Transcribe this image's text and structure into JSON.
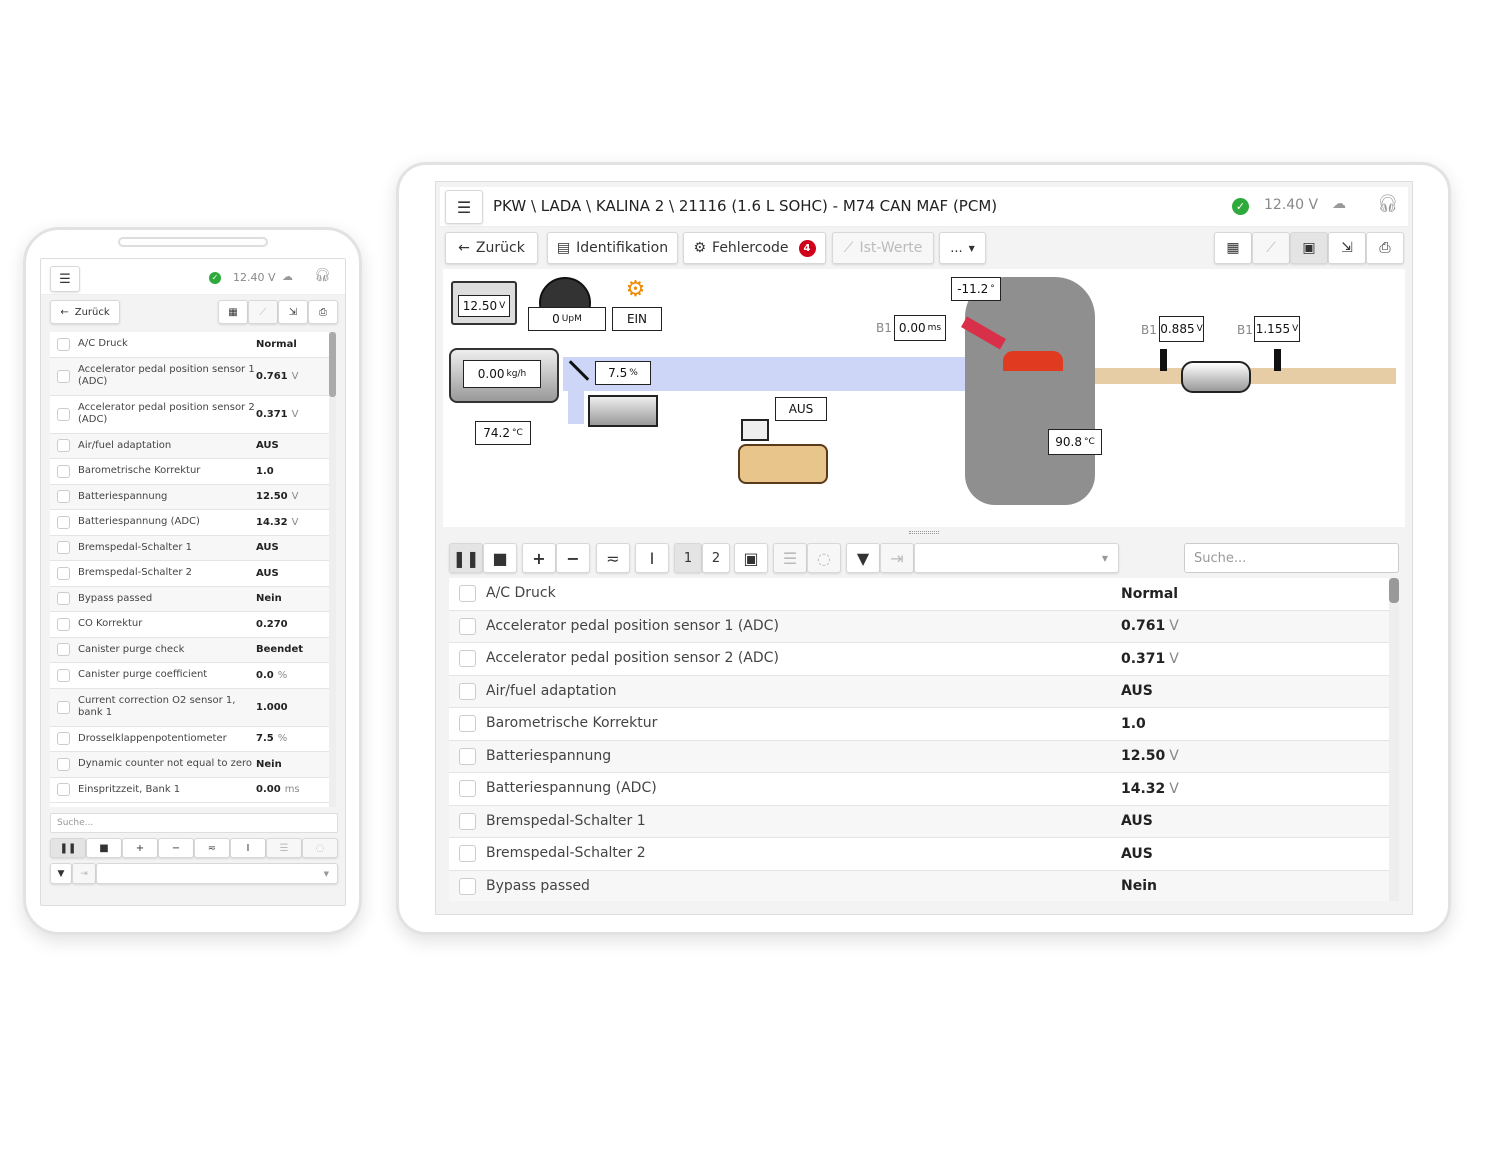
{
  "header": {
    "title": "PKW \\ LADA \\ KALINA 2 \\ 21116 (1.6 L SOHC) - M74 CAN MAF (PCM)",
    "voltage": "12.40 V",
    "status_color": "#2eaa3c"
  },
  "toolbar": {
    "back": "Zurück",
    "identification": "Identifikation",
    "fault_codes": "Fehlercode",
    "fault_count": "4",
    "live_values": "Ist-Werte",
    "more": "...",
    "badge_color": "#d0021b"
  },
  "diagram": {
    "battery": {
      "value": "12.50",
      "unit": "V"
    },
    "rpm": {
      "value": "0",
      "unit": "UpM"
    },
    "engine_lamp": "EIN",
    "maf": {
      "value": "0.00",
      "unit": "kg/h"
    },
    "throttle": {
      "value": "7.5",
      "unit": "%"
    },
    "intake_temp": {
      "value": "74.2",
      "unit": "°C"
    },
    "purge_valve": "AUS",
    "ignition": {
      "value": "-11.2",
      "unit": "°"
    },
    "injection": {
      "bank": "B1",
      "value": "0.00",
      "unit": "ms"
    },
    "coolant": {
      "value": "90.8",
      "unit": "°C"
    },
    "o2_1": {
      "bank": "B1",
      "value": "0.885",
      "unit": "V"
    },
    "o2_2": {
      "bank": "B1",
      "value": "1.155",
      "unit": "V"
    }
  },
  "list_toolbar": {
    "page1": "1",
    "page2": "2",
    "search_placeholder": "Suche..."
  },
  "rows": [
    {
      "name": "A/C Druck",
      "value": "Normal",
      "unit": ""
    },
    {
      "name": "Accelerator pedal position sensor 1 (ADC)",
      "value": "0.761",
      "unit": "V"
    },
    {
      "name": "Accelerator pedal position sensor 2 (ADC)",
      "value": "0.371",
      "unit": "V"
    },
    {
      "name": "Air/fuel adaptation",
      "value": "AUS",
      "unit": ""
    },
    {
      "name": "Barometrische Korrektur",
      "value": "1.0",
      "unit": ""
    },
    {
      "name": "Batteriespannung",
      "value": "12.50",
      "unit": "V"
    },
    {
      "name": "Batteriespannung (ADC)",
      "value": "14.32",
      "unit": "V"
    },
    {
      "name": "Bremspedal-Schalter 1",
      "value": "AUS",
      "unit": ""
    },
    {
      "name": "Bremspedal-Schalter 2",
      "value": "AUS",
      "unit": ""
    },
    {
      "name": "Bypass passed",
      "value": "Nein",
      "unit": ""
    },
    {
      "name": "CO Korrektur",
      "value": "0.270",
      "unit": ""
    },
    {
      "name": "Canister purge check",
      "value": "Beendet",
      "unit": ""
    },
    {
      "name": "Canister purge coefficient",
      "value": "0.0",
      "unit": "%"
    },
    {
      "name": "Current correction O2 sensor 1, bank 1",
      "value": "1.000",
      "unit": ""
    },
    {
      "name": "Drosselklappenpotentiometer",
      "value": "7.5",
      "unit": "%"
    },
    {
      "name": "Dynamic counter not equal to zero",
      "value": "Nein",
      "unit": ""
    },
    {
      "name": "Einspritzzeit, Bank 1",
      "value": "0.00",
      "unit": "ms"
    }
  ]
}
